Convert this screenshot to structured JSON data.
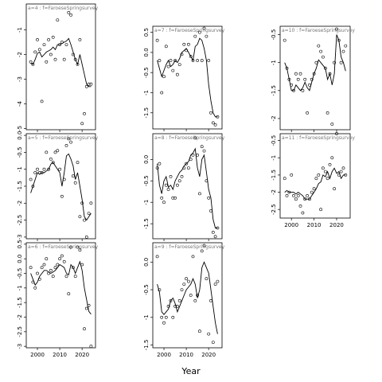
{
  "figure": {
    "xlabel": "Year"
  },
  "chart_data": [
    {
      "type": "line",
      "title": "a=4 : f=FaroeseSpringsurvey",
      "xlim": [
        1995,
        2026
      ],
      "ylim": [
        -5.05,
        0.05
      ],
      "xticks": [
        2000,
        2010,
        2020
      ],
      "yticks": [
        -5,
        -4,
        -3,
        -2,
        -1
      ],
      "points": {
        "x": [
          1997,
          1998,
          1999,
          2000,
          2001,
          2002,
          2003,
          2004,
          2005,
          2006,
          2007,
          2008,
          2009,
          2010,
          2011,
          2012,
          2013,
          2014,
          2015,
          2016,
          2017,
          2018,
          2019,
          2020,
          2021,
          2022,
          2023,
          2024
        ],
        "y": [
          -2.3,
          -2.4,
          -1.9,
          -1.4,
          -1.8,
          -3.9,
          -1.6,
          -2.3,
          -1.4,
          -2.0,
          -1.3,
          -2.2,
          -0.6,
          -1.6,
          -1.5,
          -2.2,
          -1.6,
          -0.3,
          -0.4,
          -2.0,
          -2.2,
          -2.4,
          -1.4,
          -4.8,
          -4.4,
          -3.3,
          -3.2,
          -3.2
        ]
      },
      "line": {
        "x": [
          1997,
          1998,
          1999,
          2000,
          2001,
          2002,
          2003,
          2004,
          2005,
          2006,
          2007,
          2008,
          2009,
          2010,
          2011,
          2012,
          2013,
          2014,
          2015,
          2016,
          2017,
          2018,
          2019,
          2020,
          2021,
          2022,
          2023,
          2024
        ],
        "y": [
          -2.35,
          -2.4,
          -2.2,
          -1.95,
          -1.9,
          -2.1,
          -2.0,
          -1.9,
          -1.85,
          -1.8,
          -1.7,
          -1.8,
          -1.6,
          -1.6,
          -1.55,
          -1.5,
          -1.45,
          -1.35,
          -1.6,
          -1.9,
          -2.2,
          -2.4,
          -2.0,
          -2.4,
          -2.8,
          -3.2,
          -3.3,
          -3.3
        ]
      }
    },
    {
      "type": "line",
      "title": "a=7 : f=FaroeseSpringsurvey",
      "xlim": [
        1995,
        2026
      ],
      "ylim": [
        -1.9,
        0.65
      ],
      "xticks": [
        2000,
        2010,
        2020
      ],
      "yticks": [
        -1.5,
        -1.0,
        -0.5,
        0.0,
        0.5
      ],
      "points": {
        "x": [
          1997,
          1998,
          1999,
          2000,
          2001,
          2002,
          2003,
          2004,
          2005,
          2006,
          2007,
          2008,
          2009,
          2010,
          2011,
          2012,
          2013,
          2014,
          2015,
          2016,
          2017,
          2018,
          2019,
          2020,
          2021,
          2022,
          2023,
          2024
        ],
        "y": [
          0.3,
          -0.2,
          -1.0,
          -0.6,
          0.15,
          -0.35,
          -0.2,
          -0.45,
          -0.2,
          -0.55,
          -0.3,
          -0.05,
          0.2,
          0.05,
          0.2,
          -0.1,
          -0.2,
          0.4,
          -0.2,
          0.5,
          -0.2,
          0.6,
          0.4,
          -0.2,
          -1.5,
          -1.75,
          -1.8,
          -1.6
        ]
      },
      "line": {
        "x": [
          1997,
          1998,
          1999,
          2000,
          2001,
          2002,
          2003,
          2004,
          2005,
          2006,
          2007,
          2008,
          2009,
          2010,
          2011,
          2012,
          2013,
          2014,
          2015,
          2016,
          2017,
          2018,
          2019,
          2020,
          2021,
          2022,
          2023,
          2024
        ],
        "y": [
          -0.2,
          -0.4,
          -0.6,
          -0.45,
          -0.3,
          -0.2,
          -0.35,
          -0.3,
          -0.2,
          -0.25,
          -0.15,
          0.0,
          0.05,
          0.1,
          0.0,
          -0.1,
          -0.2,
          0.15,
          0.2,
          0.35,
          0.3,
          0.1,
          -0.2,
          -0.8,
          -1.2,
          -1.5,
          -1.6,
          -1.6
        ]
      }
    },
    {
      "type": "line",
      "title": "a=10 : f=FaroeseSpringsurvey",
      "xlim": [
        1995,
        2026
      ],
      "ylim": [
        -2.2,
        -0.35
      ],
      "xticks": [
        2000,
        2010,
        2020
      ],
      "yticks": [
        -2.0,
        -1.5,
        -1.0,
        -0.5
      ],
      "points": {
        "x": [
          1997,
          1998,
          1999,
          2000,
          2001,
          2002,
          2003,
          2004,
          2005,
          2006,
          2007,
          2008,
          2009,
          2010,
          2011,
          2012,
          2013,
          2014,
          2015,
          2016,
          2017,
          2018,
          2019,
          2020,
          2021,
          2022,
          2023,
          2024
        ],
        "y": [
          -0.6,
          -1.1,
          -1.3,
          -1.4,
          -1.5,
          -1.2,
          -1.3,
          -1.2,
          -1.5,
          -1.3,
          -1.9,
          -1.4,
          -1.3,
          -1.2,
          -1.0,
          -0.7,
          -0.8,
          -0.9,
          -1.1,
          -1.9,
          -1.2,
          -2.1,
          -1.0,
          -0.4,
          -0.6,
          -1.0,
          -0.8,
          -0.7
        ]
      },
      "line": {
        "x": [
          1997,
          1998,
          1999,
          2000,
          2001,
          2002,
          2003,
          2004,
          2005,
          2006,
          2007,
          2008,
          2009,
          2010,
          2011,
          2012,
          2013,
          2014,
          2015,
          2016,
          2017,
          2018,
          2019,
          2020,
          2021,
          2022,
          2023,
          2024
        ],
        "y": [
          -1.0,
          -1.1,
          -1.3,
          -1.5,
          -1.5,
          -1.4,
          -1.45,
          -1.5,
          -1.45,
          -1.35,
          -1.45,
          -1.5,
          -1.35,
          -1.2,
          -1.1,
          -0.95,
          -1.0,
          -1.05,
          -1.1,
          -1.3,
          -1.2,
          -1.4,
          -1.2,
          -0.5,
          -0.6,
          -0.9,
          -1.0,
          -1.15
        ]
      }
    },
    {
      "type": "line",
      "title": "a=5 : f=FaroeseSpringsurvey",
      "xlim": [
        1995,
        2026
      ],
      "ylim": [
        -3.05,
        0.05
      ],
      "xticks": [
        2000,
        2010,
        2020
      ],
      "yticks": [
        -3.0,
        -2.5,
        -2.0,
        -1.5,
        -1.0,
        -0.5,
        0.0
      ],
      "points": {
        "x": [
          1997,
          1998,
          1999,
          2000,
          2001,
          2002,
          2003,
          2004,
          2005,
          2006,
          2007,
          2008,
          2009,
          2010,
          2011,
          2012,
          2013,
          2014,
          2015,
          2016,
          2017,
          2018,
          2019,
          2020,
          2021,
          2022,
          2023,
          2024
        ],
        "y": [
          -1.3,
          -1.5,
          -1.1,
          -1.0,
          -1.1,
          -1.1,
          -1.0,
          -0.5,
          -1.0,
          -0.7,
          -0.8,
          -0.5,
          -0.45,
          -1.0,
          -1.8,
          -1.3,
          -0.3,
          -0.1,
          -0.2,
          -1.2,
          -1.4,
          -0.8,
          -2.4,
          -2.0,
          -2.5,
          -3.0,
          -2.3,
          -2.0
        ]
      },
      "line": {
        "x": [
          1997,
          1998,
          1999,
          2000,
          2001,
          2002,
          2003,
          2004,
          2005,
          2006,
          2007,
          2008,
          2009,
          2010,
          2011,
          2012,
          2013,
          2014,
          2015,
          2016,
          2017,
          2018,
          2019,
          2020,
          2021,
          2022,
          2023,
          2024
        ],
        "y": [
          -1.7,
          -1.5,
          -1.3,
          -1.1,
          -1.15,
          -1.1,
          -1.1,
          -1.05,
          -1.0,
          -0.85,
          -0.8,
          -0.9,
          -1.0,
          -1.1,
          -1.5,
          -1.1,
          -0.6,
          -0.55,
          -0.7,
          -0.9,
          -1.3,
          -1.1,
          -1.5,
          -1.9,
          -2.4,
          -2.5,
          -2.4,
          -2.3
        ]
      }
    },
    {
      "type": "line",
      "title": "a=8 : f=FaroeseSpringsurvey",
      "xlim": [
        1995,
        2026
      ],
      "ylim": [
        -1.85,
        0.6
      ],
      "xticks": [
        2000,
        2010,
        2020
      ],
      "yticks": [
        -1.5,
        -1.0,
        -0.5,
        0.0
      ],
      "points": {
        "x": [
          1997,
          1998,
          1999,
          2000,
          2001,
          2002,
          2003,
          2004,
          2005,
          2006,
          2007,
          2008,
          2009,
          2010,
          2011,
          2012,
          2013,
          2014,
          2015,
          2016,
          2017,
          2018,
          2019,
          2020,
          2021,
          2022,
          2023,
          2024
        ],
        "y": [
          -0.2,
          -0.1,
          -0.9,
          -1.0,
          -0.6,
          -0.7,
          -0.4,
          -0.9,
          -0.9,
          -0.6,
          -0.5,
          -0.4,
          -0.2,
          -0.1,
          -0.2,
          0.0,
          0.1,
          0.5,
          0.1,
          -0.8,
          0.3,
          0.2,
          -0.5,
          -0.9,
          -1.2,
          -1.7,
          -1.8,
          -1.6
        ]
      },
      "line": {
        "x": [
          1997,
          1998,
          1999,
          2000,
          2001,
          2002,
          2003,
          2004,
          2005,
          2006,
          2007,
          2008,
          2009,
          2010,
          2011,
          2012,
          2013,
          2014,
          2015,
          2016,
          2017,
          2018,
          2019,
          2020,
          2021,
          2022,
          2023,
          2024
        ],
        "y": [
          -0.1,
          -0.6,
          -0.8,
          -0.5,
          -0.4,
          -0.65,
          -0.6,
          -0.7,
          -0.5,
          -0.4,
          -0.3,
          -0.25,
          -0.15,
          -0.1,
          -0.05,
          0.1,
          0.15,
          0.25,
          -0.2,
          -0.4,
          0.0,
          0.1,
          -0.3,
          -0.7,
          -0.9,
          -1.4,
          -1.6,
          -1.6
        ]
      }
    },
    {
      "type": "line",
      "title": "a=11 : f=FaroeseSpringsurvey",
      "xlim": [
        1995,
        2026
      ],
      "ylim": [
        -2.75,
        -0.3
      ],
      "xticks": [
        2000,
        2010,
        2020
      ],
      "yticks": [
        -2.5,
        -2.0,
        -1.5,
        -1.0,
        -0.5
      ],
      "points": {
        "x": [
          1997,
          1998,
          1999,
          2000,
          2001,
          2002,
          2003,
          2004,
          2005,
          2006,
          2007,
          2008,
          2009,
          2010,
          2011,
          2012,
          2013,
          2014,
          2015,
          2016,
          2017,
          2018,
          2019,
          2020,
          2021,
          2022,
          2023,
          2024
        ],
        "y": [
          -1.6,
          -2.1,
          -2.0,
          -1.5,
          -2.1,
          -2.2,
          -2.1,
          -2.4,
          -2.6,
          -2.2,
          -2.1,
          -2.2,
          -2.0,
          -1.9,
          -1.6,
          -1.5,
          -2.5,
          -1.3,
          -1.4,
          -1.6,
          -1.2,
          -1.0,
          -1.9,
          -0.3,
          -1.5,
          -1.4,
          -1.3,
          -1.5
        ]
      },
      "line": {
        "x": [
          1997,
          1998,
          1999,
          2000,
          2001,
          2002,
          2003,
          2004,
          2005,
          2006,
          2007,
          2008,
          2009,
          2010,
          2011,
          2012,
          2013,
          2014,
          2015,
          2016,
          2017,
          2018,
          2019,
          2020,
          2021,
          2022,
          2023,
          2024
        ],
        "y": [
          -2.0,
          -1.95,
          -2.0,
          -2.0,
          -2.0,
          -2.05,
          -2.0,
          -2.05,
          -2.1,
          -2.2,
          -2.2,
          -2.2,
          -2.1,
          -2.0,
          -1.9,
          -1.75,
          -1.7,
          -1.5,
          -1.55,
          -1.4,
          -1.6,
          -1.4,
          -1.3,
          -1.45,
          -1.4,
          -1.6,
          -1.5,
          -1.5
        ]
      }
    },
    {
      "type": "line",
      "title": "a=6 : f=FaroeseSpringsurvey",
      "xlim": [
        1995,
        2026
      ],
      "ylim": [
        -3.05,
        0.55
      ],
      "xticks": [
        2000,
        2010,
        2020
      ],
      "yticks": [
        -3.0,
        -2.5,
        -2.0,
        -1.5,
        -1.0,
        -0.5,
        0.0,
        0.5
      ],
      "points": {
        "x": [
          1997,
          1998,
          1999,
          2000,
          2001,
          2002,
          2003,
          2004,
          2005,
          2006,
          2007,
          2008,
          2009,
          2010,
          2011,
          2012,
          2013,
          2014,
          2015,
          2016,
          2017,
          2018,
          2019,
          2020,
          2021,
          2022,
          2023,
          2024
        ],
        "y": [
          -0.3,
          -0.8,
          -1.0,
          -0.5,
          -0.7,
          -0.3,
          -0.2,
          0.0,
          -0.5,
          -0.4,
          -0.6,
          -0.3,
          -0.2,
          0.0,
          0.1,
          -0.1,
          -0.6,
          -1.2,
          0.4,
          -0.3,
          -0.6,
          0.4,
          0.3,
          -0.2,
          -2.4,
          -1.7,
          -1.6,
          -3.0
        ]
      },
      "line": {
        "x": [
          1997,
          1998,
          1999,
          2000,
          2001,
          2002,
          2003,
          2004,
          2005,
          2006,
          2007,
          2008,
          2009,
          2010,
          2011,
          2012,
          2013,
          2014,
          2015,
          2016,
          2017,
          2018,
          2019,
          2020,
          2021,
          2022,
          2023,
          2024
        ],
        "y": [
          -0.5,
          -0.7,
          -0.9,
          -0.8,
          -0.6,
          -0.5,
          -0.4,
          -0.4,
          -0.45,
          -0.5,
          -0.45,
          -0.4,
          -0.3,
          -0.2,
          -0.25,
          -0.3,
          -0.5,
          -0.55,
          -0.2,
          -0.3,
          -0.5,
          -0.3,
          -0.1,
          -0.4,
          -1.0,
          -1.4,
          -1.8,
          -1.9
        ]
      }
    },
    {
      "type": "line",
      "title": "a=9 : f=FaroeseSpringsurvey",
      "xlim": [
        1995,
        2026
      ],
      "ylim": [
        -1.55,
        0.35
      ],
      "xticks": [
        2000,
        2010,
        2020
      ],
      "yticks": [
        -1.5,
        -1.0,
        -0.5,
        0.0
      ],
      "points": {
        "x": [
          1997,
          1998,
          1999,
          2000,
          2001,
          2002,
          2003,
          2004,
          2005,
          2006,
          2007,
          2008,
          2009,
          2010,
          2011,
          2012,
          2013,
          2014,
          2015,
          2016,
          2017,
          2018,
          2019,
          2020,
          2021,
          2022,
          2023,
          2024
        ],
        "y": [
          0.1,
          -0.5,
          -1.0,
          -1.1,
          -1.0,
          -0.8,
          -0.7,
          -1.0,
          -0.8,
          -0.8,
          -0.7,
          -0.5,
          -0.4,
          -0.3,
          -0.35,
          -0.6,
          0.1,
          -0.7,
          -0.6,
          -1.25,
          0.2,
          0.3,
          -0.3,
          -1.3,
          -0.7,
          -1.45,
          -0.4,
          -0.35
        ]
      },
      "line": {
        "x": [
          1997,
          1998,
          1999,
          2000,
          2001,
          2002,
          2003,
          2004,
          2005,
          2006,
          2007,
          2008,
          2009,
          2010,
          2011,
          2012,
          2013,
          2014,
          2015,
          2016,
          2017,
          2018,
          2019,
          2020,
          2021,
          2022,
          2023,
          2024
        ],
        "y": [
          -0.4,
          -0.55,
          -0.9,
          -0.95,
          -0.9,
          -0.85,
          -0.7,
          -0.65,
          -0.75,
          -0.9,
          -0.8,
          -0.7,
          -0.6,
          -0.5,
          -0.45,
          -0.4,
          -0.3,
          -0.4,
          -0.65,
          -0.5,
          -0.1,
          0.0,
          -0.1,
          -0.2,
          -0.5,
          -0.8,
          -1.1,
          -1.3
        ]
      }
    }
  ]
}
